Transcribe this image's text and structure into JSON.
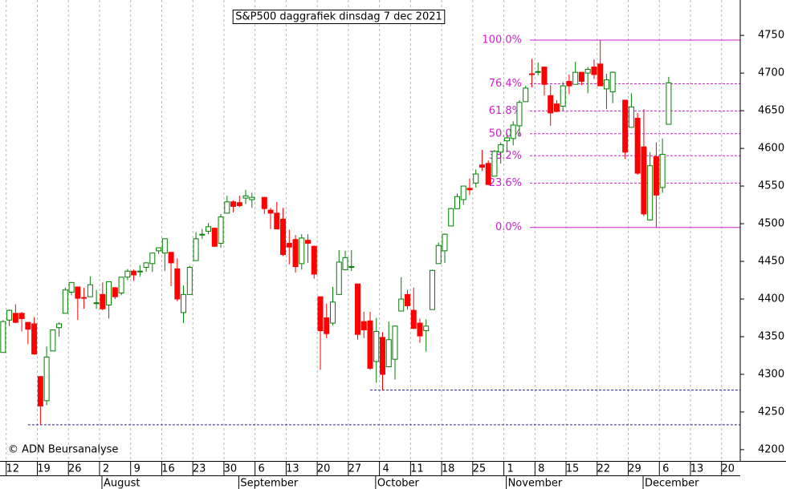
{
  "chart_data": {
    "type": "candlestick",
    "title": "S&P500 daggrafiek dinsdag 7 dec 2021",
    "copyright": "© ADN Beursanalyse",
    "up_color": "#008000",
    "down_color": "#ff0000",
    "fib_color": "#d020d0",
    "support_color": "#2020a0",
    "grid": true,
    "ylim": [
      4185,
      4797
    ],
    "yticks": [
      4200,
      4250,
      4300,
      4350,
      4400,
      4450,
      4500,
      4550,
      4600,
      4650,
      4700,
      4750
    ],
    "categories": [
      null,
      "12",
      null,
      null,
      null,
      null,
      "19",
      null,
      null,
      null,
      null,
      "26",
      null,
      null,
      null,
      null,
      "2",
      null,
      null,
      null,
      null,
      "9",
      null,
      null,
      null,
      null,
      "16",
      null,
      null,
      null,
      null,
      "23",
      null,
      null,
      null,
      null,
      "30",
      null,
      null,
      null,
      null,
      "6",
      null,
      null,
      null,
      null,
      "13",
      null,
      null,
      null,
      null,
      "20",
      null,
      null,
      null,
      null,
      "27",
      null,
      null,
      null,
      null,
      "4",
      null,
      null,
      null,
      null,
      "11",
      null,
      null,
      null,
      null,
      "18",
      null,
      null,
      null,
      null,
      "25",
      null,
      null,
      null,
      null,
      "1",
      null,
      null,
      null,
      null,
      "8",
      null,
      null,
      null,
      null,
      "15",
      null,
      null,
      null,
      null,
      "22",
      null,
      null,
      null,
      null,
      "29",
      null,
      null,
      null,
      null,
      "6",
      null,
      null,
      null,
      null,
      "13",
      null,
      null,
      null,
      null,
      "20",
      null,
      null
    ],
    "months": [
      null,
      null,
      null,
      null,
      null,
      null,
      null,
      null,
      null,
      null,
      null,
      null,
      null,
      null,
      null,
      null,
      "August",
      null,
      null,
      null,
      null,
      null,
      null,
      null,
      null,
      null,
      null,
      null,
      null,
      null,
      null,
      null,
      null,
      null,
      null,
      null,
      null,
      null,
      "September",
      null,
      null,
      null,
      null,
      null,
      null,
      null,
      null,
      null,
      null,
      null,
      null,
      null,
      null,
      null,
      null,
      null,
      null,
      null,
      null,
      null,
      "October",
      null,
      null,
      null,
      null,
      null,
      null,
      null,
      null,
      null,
      null,
      null,
      null,
      null,
      null,
      null,
      null,
      null,
      null,
      null,
      null,
      "November",
      null,
      null,
      null,
      null,
      null,
      null,
      null,
      null,
      null,
      null,
      null,
      null,
      null,
      null,
      null,
      null,
      null,
      null,
      null,
      null,
      null,
      "December",
      null,
      null,
      null,
      null,
      null,
      null,
      null,
      null,
      null,
      null,
      null,
      null,
      null,
      null,
      null
    ],
    "open": [
      4329,
      4372,
      4381,
      4381,
      4369,
      4367,
      4297,
      4265,
      4331,
      4362,
      4381,
      4409,
      4416,
      4402,
      4403,
      4395,
      4406,
      4392,
      4415,
      4408,
      4429,
      4437,
      4436,
      4442,
      4447,
      4464,
      4461,
      4462,
      4440,
      4382,
      4406,
      4451,
      4485,
      4490,
      4494,
      4474,
      4514,
      4529,
      4528,
      4534,
      4532,
      null,
      4535,
      4518,
      4514,
      4506,
      4474,
      4479,
      4447,
      4478,
      4470,
      4403,
      4375,
      4368,
      4406,
      4439,
      4443,
      4420,
      4370,
      4371,
      4317,
      4349,
      4310,
      4320,
      4384,
      4406,
      4385,
      4368,
      4358,
      4386,
      4447,
      4464,
      4497,
      4520,
      4532,
      4547,
      4554,
      4578,
      4580,
      4563,
      4595,
      4610,
      4613,
      4630,
      4662,
      4699,
      4701,
      4708,
      4670,
      4659,
      4656,
      4689,
      4685,
      4701,
      4700,
      4708,
      4712,
      4679,
      4675,
      null,
      4664,
      4628,
      4640,
      4602,
      4505,
      4589,
      4548,
      4632,
      null,
      null,
      null,
      null,
      null,
      null,
      null,
      null,
      null,
      null,
      null
    ],
    "high": [
      4372,
      4386,
      4393,
      4383,
      4369,
      4376,
      4298,
      4337,
      4359,
      4369,
      4415,
      4422,
      4416,
      4415,
      4430,
      4412,
      4422,
      4423,
      4416,
      4429,
      4440,
      4439,
      4445,
      4449,
      4461,
      4468,
      4480,
      4462,
      4454,
      4418,
      4444,
      4489,
      4493,
      4501,
      4495,
      4513,
      4537,
      4531,
      4537,
      4545,
      4541,
      null,
      4535,
      4521,
      4529,
      4521,
      4492,
      4485,
      4486,
      4486,
      4471,
      4403,
      4394,
      4416,
      4465,
      4464,
      4465,
      4420,
      4383,
      4383,
      4375,
      4356,
      4370,
      4365,
      4429,
      4412,
      4415,
      4374,
      4373,
      4439,
      4475,
      4487,
      4521,
      4540,
      4550,
      4560,
      4572,
      4598,
      4584,
      4598,
      4608,
      4620,
      4636,
      4664,
      4683,
      4719,
      4714,
      4708,
      4684,
      4664,
      4688,
      4698,
      4715,
      4701,
      4708,
      4718,
      4744,
      4699,
      4702,
      null,
      4664,
      4673,
      4647,
      4652,
      4595,
      4608,
      4613,
      4695,
      null,
      null,
      null,
      null,
      null,
      null,
      null,
      null,
      null,
      null,
      null
    ],
    "low": [
      4329,
      4364,
      4368,
      4357,
      4340,
      4326,
      4233,
      4259,
      4331,
      4350,
      4381,
      4405,
      4372,
      4387,
      4403,
      4387,
      4385,
      4374,
      4400,
      4405,
      4425,
      4424,
      4430,
      4436,
      4436,
      4460,
      4437,
      4417,
      4397,
      4368,
      4406,
      4451,
      4480,
      4486,
      4469,
      4468,
      4514,
      4515,
      4522,
      4526,
      4521,
      null,
      4513,
      4493,
      4493,
      4457,
      4446,
      4435,
      4439,
      4448,
      4427,
      4306,
      4348,
      4365,
      4406,
      4438,
      4437,
      4346,
      4348,
      4306,
      4289,
      4279,
      4310,
      4293,
      4384,
      4386,
      4360,
      4342,
      4330,
      4386,
      4447,
      4448,
      4497,
      4520,
      4525,
      4538,
      4548,
      4570,
      4551,
      4563,
      4580,
      4595,
      4604,
      4616,
      4662,
      4681,
      4697,
      4670,
      4630,
      4648,
      4650,
      4672,
      4685,
      4684,
      4673,
      4692,
      4683,
      4652,
      4660,
      null,
      4586,
      4628,
      4565,
      4510,
      4504,
      4495,
      4541,
      4632,
      null,
      null,
      null,
      null,
      null,
      null,
      null,
      null,
      null,
      null,
      null
    ],
    "close": [
      4370,
      4385,
      4369,
      4374,
      4360,
      4327,
      4258,
      4323,
      4359,
      4367,
      4412,
      4422,
      4401,
      4401,
      4419,
      4395,
      4387,
      4423,
      4403,
      4429,
      4437,
      4432,
      4437,
      4448,
      4461,
      4468,
      4480,
      4448,
      4400,
      4406,
      4442,
      4480,
      4486,
      4496,
      4470,
      4509,
      4529,
      4523,
      4524,
      4537,
      4535,
      null,
      4520,
      4514,
      4493,
      4459,
      4469,
      4443,
      4481,
      4474,
      4433,
      4358,
      4354,
      4396,
      4449,
      4455,
      4443,
      4353,
      4359,
      4308,
      4357,
      4300,
      4346,
      4364,
      4400,
      4391,
      4361,
      4351,
      4364,
      4438,
      4471,
      4486,
      4520,
      4536,
      4550,
      4545,
      4566,
      4575,
      4552,
      4596,
      4605,
      4614,
      4631,
      4661,
      4680,
      4698,
      4702,
      4685,
      4647,
      4649,
      4683,
      4683,
      4701,
      4689,
      4705,
      4698,
      4683,
      4691,
      4701,
      null,
      4595,
      4655,
      4567,
      4513,
      4577,
      4538,
      4592,
      4687,
      null,
      null,
      null,
      null,
      null,
      null,
      null,
      null,
      null,
      null,
      null
    ],
    "fib_levels": [
      {
        "label": "100.0%",
        "value": 4743.8
      },
      {
        "label": "76.4%",
        "value": 4685.8
      },
      {
        "label": "61.8%",
        "value": 4649.7
      },
      {
        "label": "50.0%",
        "value": 4619.5
      },
      {
        "label": "38.2%",
        "value": 4590.2
      },
      {
        "label": "23.6%",
        "value": 4553.9
      },
      {
        "label": "0.0%",
        "value": 4495
      }
    ],
    "support_lines": [
      4233,
      4279
    ]
  }
}
